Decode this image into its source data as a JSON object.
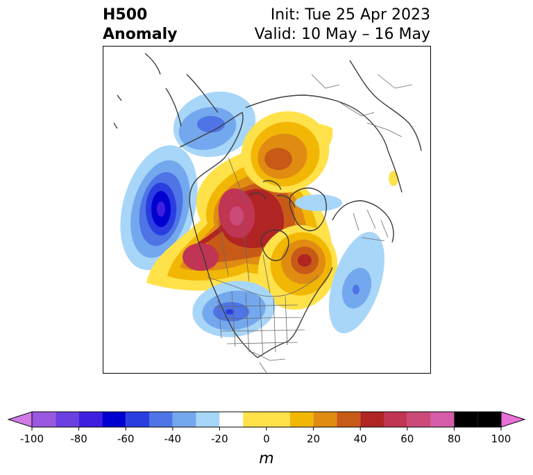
{
  "title": {
    "left_line1": "H500",
    "left_line2": "Anomaly",
    "right_line1": "Init: Tue 25 Apr 2023",
    "right_line2": "Valid: 10 May – 16 May"
  },
  "map": {
    "projection": "polar-stereographic",
    "region": "Northern Hemisphere (North America / Arctic)",
    "features": [
      "coastlines",
      "country-borders",
      "us-state-borders"
    ],
    "anomaly_centers": [
      {
        "label": "negative anomaly over NE Pacific",
        "value_m": -60
      },
      {
        "label": "negative anomaly over Alaska/Bering",
        "value_m": -30
      },
      {
        "label": "positive anomaly over Yukon/NW Canada",
        "value_m": 70
      },
      {
        "label": "positive anomaly off Pacific Northwest coast",
        "value_m": 80
      },
      {
        "label": "positive anomaly over Hudson Bay/Quebec",
        "value_m": 60
      },
      {
        "label": "positive anomaly over Arctic Ocean",
        "value_m": 40
      },
      {
        "label": "negative anomaly over western US",
        "value_m": -50
      },
      {
        "label": "negative anomaly over western Atlantic",
        "value_m": -40
      },
      {
        "label": "negative anomaly over Greenland Sea",
        "value_m": -20
      }
    ]
  },
  "colorbar": {
    "unit": "m",
    "levels": [
      -100,
      -90,
      -80,
      -70,
      -60,
      -50,
      -40,
      -30,
      -20,
      -10,
      10,
      20,
      30,
      40,
      50,
      60,
      70,
      80,
      90,
      100
    ],
    "colors": [
      "#9a57e0",
      "#6c3fe0",
      "#3e1fe0",
      "#0000d0",
      "#2a3ee0",
      "#4e74e6",
      "#74a8ee",
      "#a8d6f8",
      "#ffffff",
      "#ffe14a",
      "#f2b705",
      "#e08c12",
      "#c85a18",
      "#b02424",
      "#c03454",
      "#cc4a78",
      "#d45ca8"
    ],
    "extend_low_color": "#d07ae6",
    "extend_high_color": "#e86ed8",
    "ticks": [
      "-100",
      "-80",
      "-60",
      "-40",
      "-20",
      "0",
      "20",
      "40",
      "60",
      "80",
      "100"
    ]
  }
}
